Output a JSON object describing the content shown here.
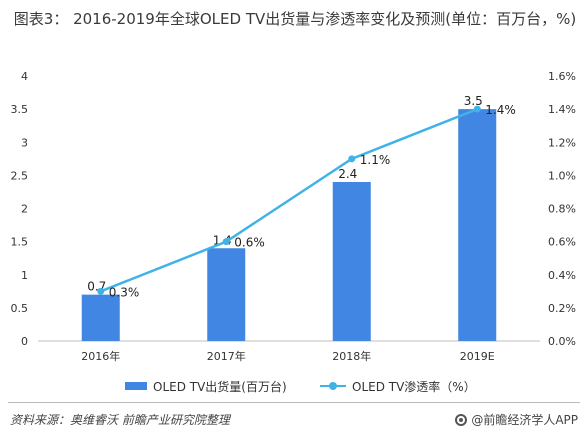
{
  "title": "图表3： 2016-2019年全球OLED TV出货量与渗透率变化及预测(单位：百万台，%)",
  "source": "资料来源：奥维睿沃 前瞻产业研究院整理",
  "brand": "@前瞻经济学人APP",
  "colors": {
    "bar": "#4186e2",
    "line": "#3fb3e8"
  },
  "chart_data": {
    "type": "bar",
    "categories": [
      "2016年",
      "2017年",
      "2018年",
      "2019E"
    ],
    "series": [
      {
        "name": "OLED TV出货量(百万台)",
        "type": "bar",
        "axis": "left",
        "values": [
          0.7,
          1.4,
          2.4,
          3.5
        ],
        "labels": [
          "0.7",
          "1.4",
          "2.4",
          "3.5"
        ]
      },
      {
        "name": "OLED TV渗透率（%）",
        "type": "line",
        "axis": "right",
        "values": [
          0.3,
          0.6,
          1.1,
          1.4
        ],
        "labels": [
          "0.3%",
          "0.6%",
          "1.1%",
          "1.4%"
        ]
      }
    ],
    "y_left": {
      "min": 0,
      "max": 4,
      "ticks": [
        "0",
        "0.5",
        "1",
        "1.5",
        "2",
        "2.5",
        "3",
        "3.5",
        "4"
      ]
    },
    "y_right": {
      "min": 0,
      "max": 1.6,
      "ticks": [
        "0.0%",
        "0.2%",
        "0.4%",
        "0.6%",
        "0.8%",
        "1.0%",
        "1.2%",
        "1.4%",
        "1.6%"
      ]
    },
    "grid": false,
    "legend_position": "bottom"
  }
}
